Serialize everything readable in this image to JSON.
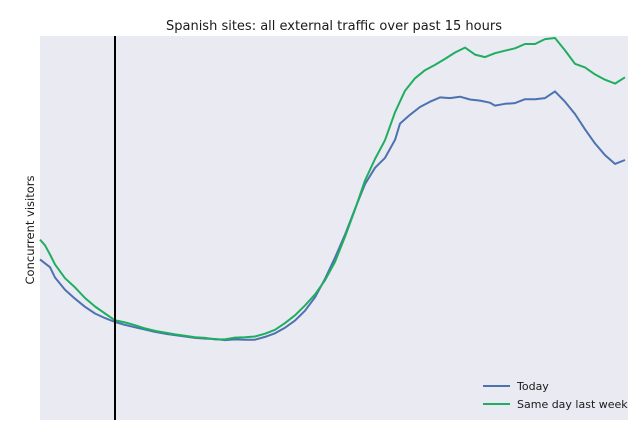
{
  "chart_data": {
    "type": "line",
    "title": "Spanish sites: all external traffic over past 15 hours",
    "xlabel": "",
    "ylabel": "Concurrent visitors",
    "x_ticks_shown": false,
    "y_ticks_shown": false,
    "ylim": [
      0,
      100
    ],
    "grid": false,
    "background": "#eaeaf2",
    "legend_position": "bottom-right",
    "vline_x": 15,
    "x_range": [
      0,
      117
    ],
    "series": [
      {
        "name": "Today",
        "color": "#4c72b0",
        "points": [
          [
            0,
            37.4
          ],
          [
            2,
            35.2
          ],
          [
            3,
            32.3
          ],
          [
            5,
            28.8
          ],
          [
            7,
            26.3
          ],
          [
            9,
            24.0
          ],
          [
            11,
            22.1
          ],
          [
            13,
            20.8
          ],
          [
            15,
            19.7
          ],
          [
            17,
            18.9
          ],
          [
            19,
            18.2
          ],
          [
            21,
            17.6
          ],
          [
            23,
            16.9
          ],
          [
            25,
            16.4
          ],
          [
            27,
            16.0
          ],
          [
            29,
            15.6
          ],
          [
            31,
            15.2
          ],
          [
            33,
            15.0
          ],
          [
            35,
            14.9
          ],
          [
            37,
            14.6
          ],
          [
            39,
            14.8
          ],
          [
            41,
            14.7
          ],
          [
            43,
            14.7
          ],
          [
            45,
            15.5
          ],
          [
            47,
            16.5
          ],
          [
            49,
            18.1
          ],
          [
            51,
            20.1
          ],
          [
            53,
            22.9
          ],
          [
            55,
            26.7
          ],
          [
            57,
            31.9
          ],
          [
            59,
            37.9
          ],
          [
            61,
            44.4
          ],
          [
            63,
            51.7
          ],
          [
            65,
            58.7
          ],
          [
            67,
            63.3
          ],
          [
            69,
            66.1
          ],
          [
            71,
            71.2
          ],
          [
            72,
            75.8
          ],
          [
            74,
            78.3
          ],
          [
            76,
            80.5
          ],
          [
            78,
            82.0
          ],
          [
            80,
            83.2
          ],
          [
            82,
            83.0
          ],
          [
            84,
            83.4
          ],
          [
            86,
            82.6
          ],
          [
            88,
            82.3
          ],
          [
            90,
            81.7
          ],
          [
            91,
            80.9
          ],
          [
            93,
            81.4
          ],
          [
            95,
            81.6
          ],
          [
            97,
            82.7
          ],
          [
            99,
            82.7
          ],
          [
            101,
            83.0
          ],
          [
            103,
            84.9
          ],
          [
            105,
            82.0
          ],
          [
            107,
            78.5
          ],
          [
            109,
            74.2
          ],
          [
            111,
            70.2
          ],
          [
            113,
            66.9
          ],
          [
            115,
            64.4
          ],
          [
            117,
            65.5
          ]
        ]
      },
      {
        "name": "Same day last week",
        "color": "#1fae5f",
        "points": [
          [
            0,
            43.0
          ],
          [
            1,
            41.4
          ],
          [
            2,
            38.8
          ],
          [
            3,
            36.0
          ],
          [
            5,
            32.1
          ],
          [
            7,
            29.5
          ],
          [
            9,
            26.5
          ],
          [
            11,
            24.1
          ],
          [
            13,
            22.1
          ],
          [
            15,
            20.2
          ],
          [
            17,
            19.6
          ],
          [
            19,
            18.8
          ],
          [
            21,
            17.9
          ],
          [
            23,
            17.2
          ],
          [
            25,
            16.7
          ],
          [
            27,
            16.2
          ],
          [
            29,
            15.8
          ],
          [
            31,
            15.4
          ],
          [
            33,
            15.2
          ],
          [
            35,
            14.8
          ],
          [
            37,
            14.8
          ],
          [
            39,
            15.3
          ],
          [
            41,
            15.4
          ],
          [
            43,
            15.6
          ],
          [
            45,
            16.4
          ],
          [
            47,
            17.5
          ],
          [
            49,
            19.4
          ],
          [
            51,
            21.6
          ],
          [
            53,
            24.4
          ],
          [
            55,
            27.5
          ],
          [
            57,
            31.5
          ],
          [
            59,
            36.7
          ],
          [
            61,
            43.8
          ],
          [
            63,
            51.5
          ],
          [
            65,
            59.7
          ],
          [
            67,
            65.8
          ],
          [
            69,
            71.1
          ],
          [
            71,
            79.0
          ],
          [
            73,
            85.1
          ],
          [
            75,
            88.6
          ],
          [
            77,
            90.9
          ],
          [
            79,
            92.4
          ],
          [
            81,
            94.1
          ],
          [
            83,
            95.9
          ],
          [
            85,
            97.3
          ],
          [
            87,
            95.3
          ],
          [
            89,
            94.6
          ],
          [
            91,
            95.7
          ],
          [
            93,
            96.4
          ],
          [
            95,
            97.1
          ],
          [
            97,
            98.3
          ],
          [
            99,
            98.3
          ],
          [
            101,
            99.7
          ],
          [
            103,
            100.0
          ],
          [
            105,
            96.5
          ],
          [
            107,
            92.7
          ],
          [
            109,
            91.7
          ],
          [
            111,
            89.7
          ],
          [
            113,
            88.2
          ],
          [
            115,
            87.1
          ],
          [
            117,
            88.9
          ]
        ]
      }
    ]
  }
}
